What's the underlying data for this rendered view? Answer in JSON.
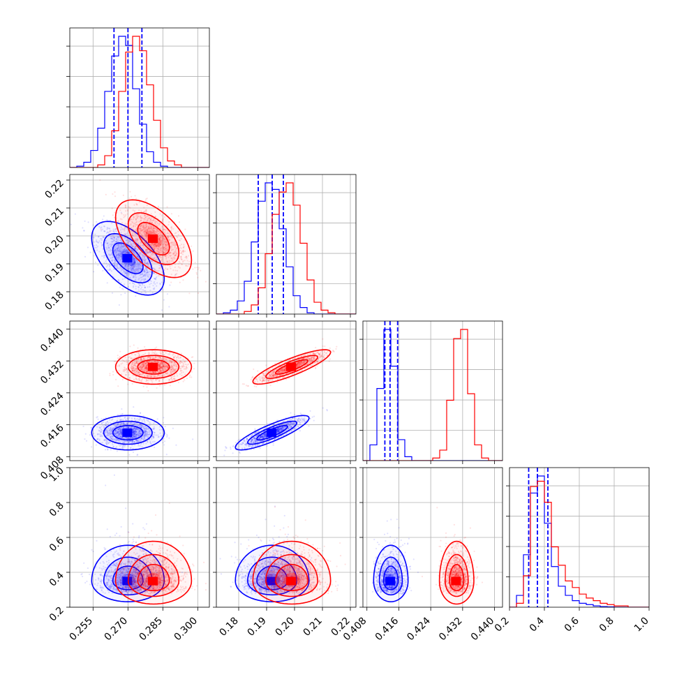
{
  "chart_data": {
    "type": "corner",
    "title": "",
    "parameters": [
      {
        "name": "",
        "range": [
          0.245,
          0.305
        ],
        "ticks": [
          "0.255",
          "0.270",
          "0.285",
          "0.300"
        ]
      },
      {
        "name": "",
        "range": [
          0.172,
          0.222
        ],
        "ticks": [
          "0.18",
          "0.19",
          "0.20",
          "0.21",
          "0.22"
        ]
      },
      {
        "name": "",
        "range": [
          0.407,
          0.442
        ],
        "ticks": [
          "0.408",
          "0.416",
          "0.424",
          "0.432",
          "0.440"
        ]
      },
      {
        "name": "",
        "range": [
          0.2,
          1.0
        ],
        "ticks": [
          "0.2",
          "0.4",
          "0.6",
          "0.8",
          "1.0"
        ]
      }
    ],
    "series": [
      {
        "color": "#0000ff",
        "quantiles": [
          [
            0.264,
            0.27,
            0.276
          ],
          [
            0.187,
            0.192,
            0.196
          ],
          [
            0.4125,
            0.4138,
            0.4157
          ],
          [
            0.31,
            0.36,
            0.42
          ]
        ],
        "histograms": [
          [
            0.0,
            0.01,
            0.04,
            0.13,
            0.3,
            0.58,
            0.85,
            1.0,
            0.93,
            0.6,
            0.33,
            0.12,
            0.04,
            0.01,
            0.0,
            0.0,
            0.0,
            0.0,
            0.0,
            0.0
          ],
          [
            0.0,
            0.01,
            0.03,
            0.1,
            0.25,
            0.55,
            0.86,
            1.0,
            0.95,
            0.65,
            0.36,
            0.14,
            0.05,
            0.01,
            0.0,
            0.0,
            0.0,
            0.0,
            0.0,
            0.0
          ],
          [
            0.0,
            0.12,
            0.55,
            1.0,
            0.72,
            0.16,
            0.03,
            0.0,
            0.0,
            0.0,
            0.0,
            0.0,
            0.0,
            0.0,
            0.0,
            0.0,
            0.0,
            0.0,
            0.0,
            0.0
          ],
          [
            0.0,
            0.09,
            0.4,
            0.87,
            1.0,
            0.64,
            0.31,
            0.16,
            0.09,
            0.05,
            0.03,
            0.02,
            0.01,
            0.005,
            0.003,
            0.0,
            0.0,
            0.0,
            0.0,
            0.0
          ]
        ],
        "means": [
          0.27,
          0.192,
          0.414,
          0.37
        ],
        "sds": [
          0.0065,
          0.0055,
          0.0018,
          0.09
        ],
        "correlations": [
          [
            0,
            1,
            -0.55
          ],
          [
            0,
            2,
            0.0
          ],
          [
            0,
            3,
            0.0
          ],
          [
            1,
            2,
            0.85
          ],
          [
            1,
            3,
            0.0
          ],
          [
            2,
            3,
            0.0
          ]
        ]
      },
      {
        "color": "#ff0000",
        "quantiles": null,
        "histograms": [
          [
            0.0,
            0.0,
            0.0,
            0.0,
            0.02,
            0.09,
            0.28,
            0.58,
            0.88,
            1.0,
            0.89,
            0.63,
            0.36,
            0.15,
            0.05,
            0.02,
            0.0,
            0.0,
            0.0,
            0.0
          ],
          [
            0.0,
            0.0,
            0.0,
            0.0,
            0.02,
            0.07,
            0.2,
            0.46,
            0.76,
            0.93,
            1.0,
            0.83,
            0.54,
            0.26,
            0.09,
            0.03,
            0.01,
            0.0,
            0.0,
            0.0
          ],
          [
            0.0,
            0.0,
            0.0,
            0.0,
            0.0,
            0.0,
            0.0,
            0.0,
            0.0,
            0.0,
            0.02,
            0.08,
            0.46,
            0.93,
            1.0,
            0.51,
            0.12,
            0.02,
            0.0,
            0.0
          ],
          [
            0.0,
            0.03,
            0.24,
            0.92,
            0.96,
            0.8,
            0.46,
            0.32,
            0.2,
            0.15,
            0.1,
            0.07,
            0.05,
            0.03,
            0.02,
            0.01,
            0.01,
            0.0,
            0.0,
            0.0
          ]
        ],
        "means": [
          0.281,
          0.199,
          0.4305,
          0.37
        ],
        "sds": [
          0.0068,
          0.0058,
          0.0018,
          0.1
        ],
        "correlations": [
          [
            0,
            1,
            -0.55
          ],
          [
            0,
            2,
            0.0
          ],
          [
            0,
            3,
            0.0
          ],
          [
            1,
            2,
            0.85
          ],
          [
            1,
            3,
            0.0
          ],
          [
            2,
            3,
            0.0
          ]
        ]
      }
    ],
    "grid": true,
    "legend": "none"
  }
}
